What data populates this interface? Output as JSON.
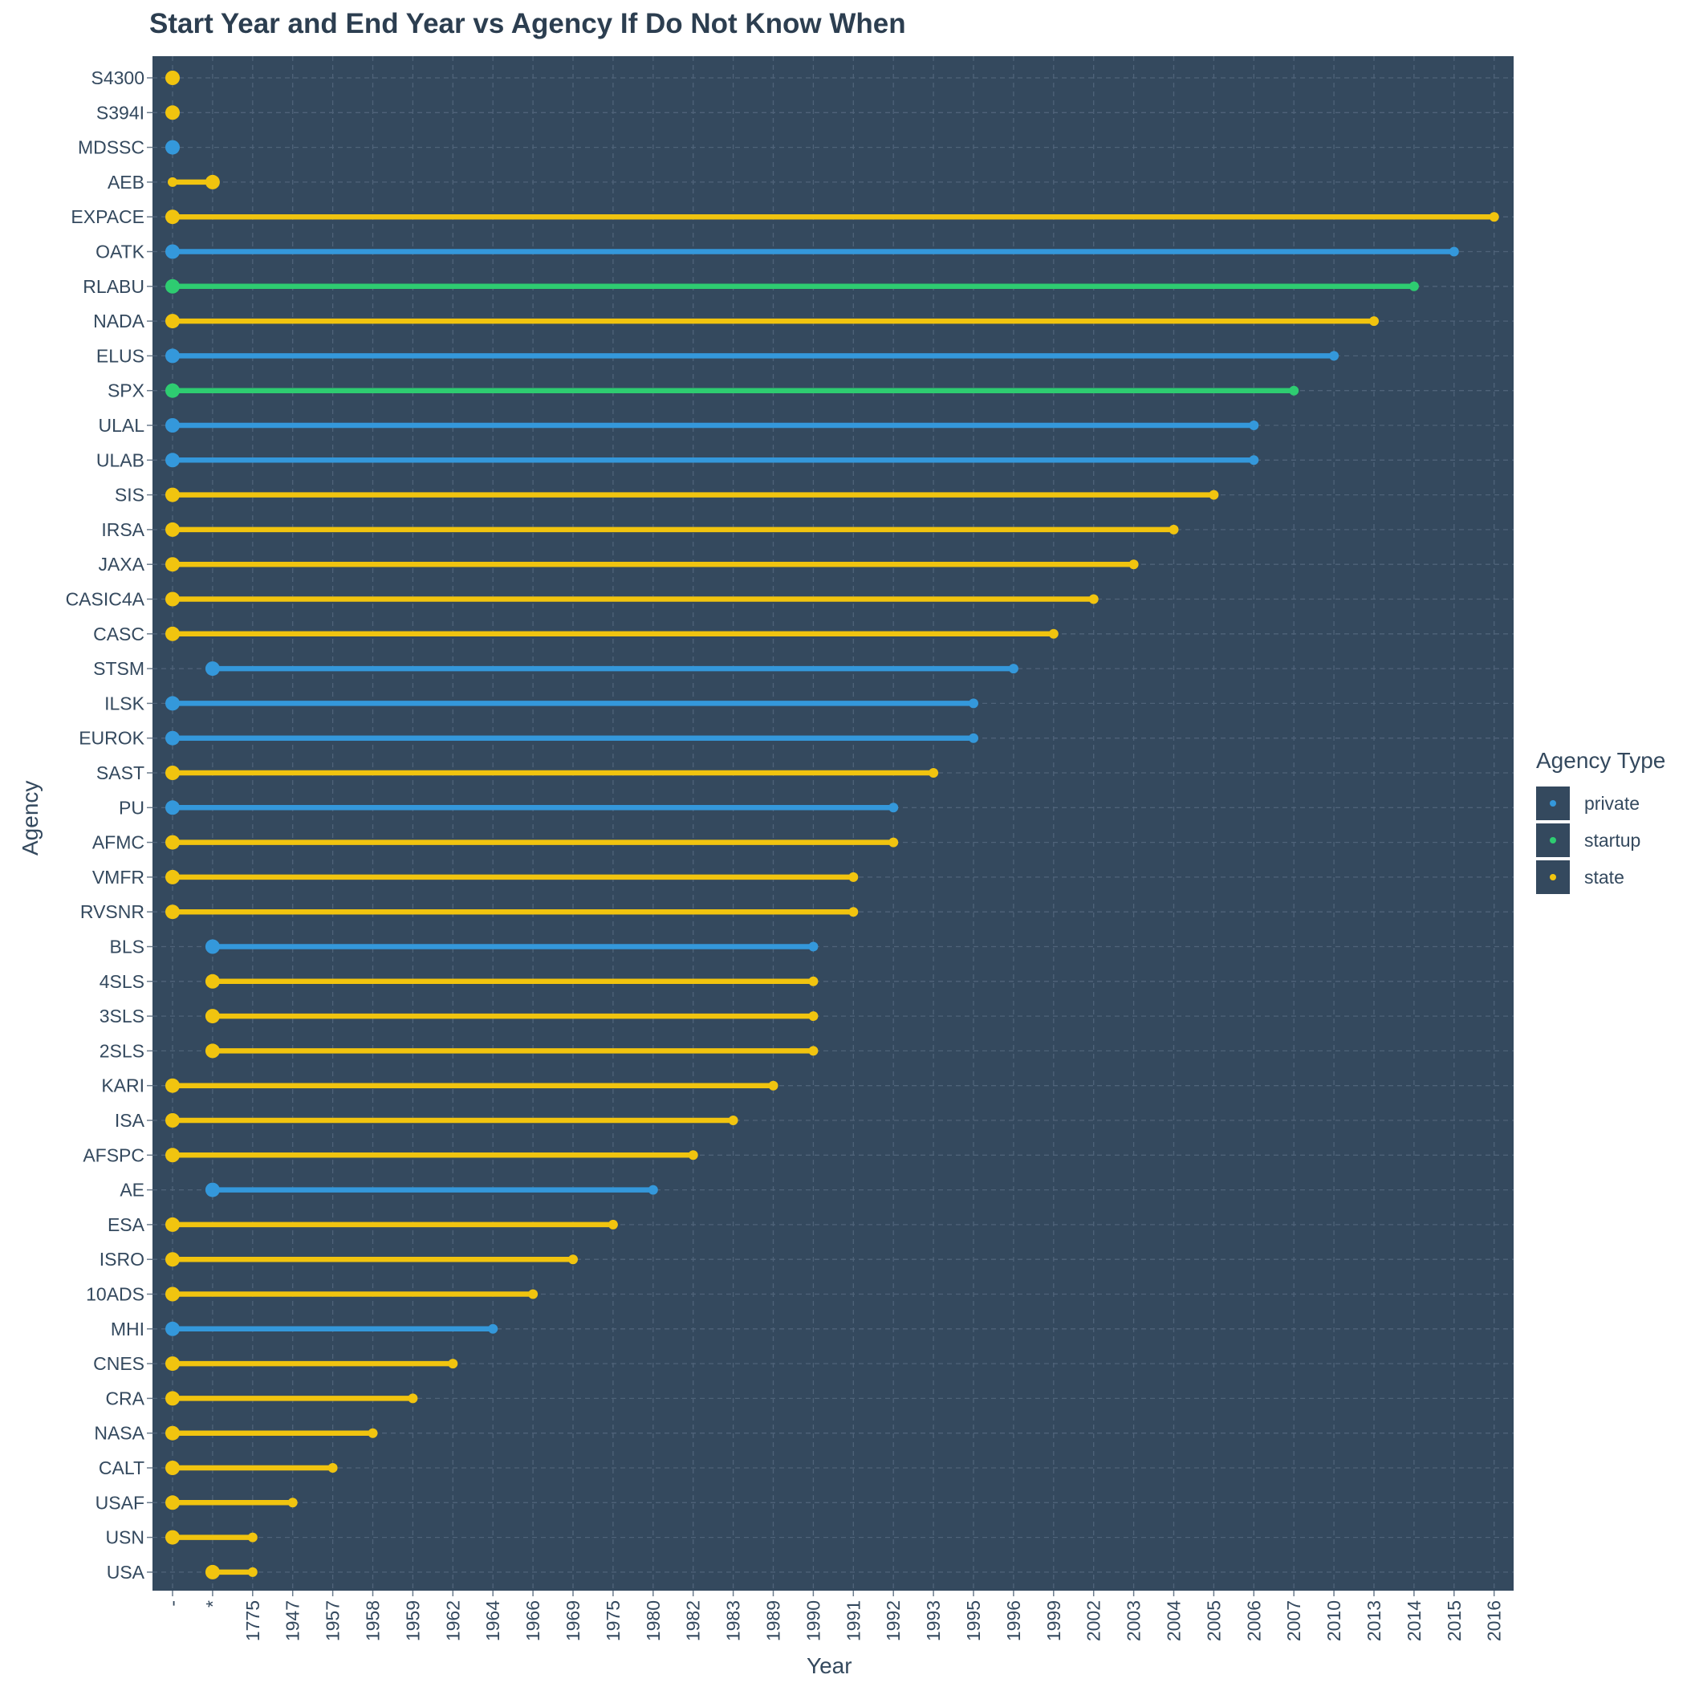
{
  "chart_data": {
    "type": "dumbbell",
    "title": "Start Year and End Year vs Agency If Do Not Know When",
    "xlabel": "Year",
    "ylabel": "Agency",
    "x_categories": [
      "-",
      "*",
      "1775",
      "1947",
      "1957",
      "1958",
      "1959",
      "1962",
      "1964",
      "1966",
      "1969",
      "1975",
      "1980",
      "1982",
      "1983",
      "1989",
      "1990",
      "1991",
      "1992",
      "1993",
      "1995",
      "1996",
      "1999",
      "2002",
      "2003",
      "2004",
      "2005",
      "2006",
      "2007",
      "2010",
      "2013",
      "2014",
      "2015",
      "2016"
    ],
    "legend_title": "Agency Type",
    "legend": [
      {
        "name": "private",
        "color": "#3498db"
      },
      {
        "name": "startup",
        "color": "#2ecc71"
      },
      {
        "name": "state",
        "color": "#f1c40f"
      }
    ],
    "background_color": "#34495e",
    "grid": true,
    "legend_position": "right",
    "rows": [
      {
        "agency": "S4300",
        "type": "state",
        "start": "-",
        "end": "-"
      },
      {
        "agency": "S394I",
        "type": "state",
        "start": "-",
        "end": "-"
      },
      {
        "agency": "MDSSC",
        "type": "private",
        "start": "-",
        "end": "-"
      },
      {
        "agency": "AEB",
        "type": "state",
        "start": "*",
        "end": "-"
      },
      {
        "agency": "EXPACE",
        "type": "state",
        "start": "-",
        "end": "2016"
      },
      {
        "agency": "OATK",
        "type": "private",
        "start": "-",
        "end": "2015"
      },
      {
        "agency": "RLABU",
        "type": "startup",
        "start": "-",
        "end": "2014"
      },
      {
        "agency": "NADA",
        "type": "state",
        "start": "-",
        "end": "2013"
      },
      {
        "agency": "ELUS",
        "type": "private",
        "start": "-",
        "end": "2010"
      },
      {
        "agency": "SPX",
        "type": "startup",
        "start": "-",
        "end": "2007"
      },
      {
        "agency": "ULAL",
        "type": "private",
        "start": "-",
        "end": "2006"
      },
      {
        "agency": "ULAB",
        "type": "private",
        "start": "-",
        "end": "2006"
      },
      {
        "agency": "SIS",
        "type": "state",
        "start": "-",
        "end": "2005"
      },
      {
        "agency": "IRSA",
        "type": "state",
        "start": "-",
        "end": "2004"
      },
      {
        "agency": "JAXA",
        "type": "state",
        "start": "-",
        "end": "2003"
      },
      {
        "agency": "CASIC4A",
        "type": "state",
        "start": "-",
        "end": "2002"
      },
      {
        "agency": "CASC",
        "type": "state",
        "start": "-",
        "end": "1999"
      },
      {
        "agency": "STSM",
        "type": "private",
        "start": "*",
        "end": "1996"
      },
      {
        "agency": "ILSK",
        "type": "private",
        "start": "-",
        "end": "1995"
      },
      {
        "agency": "EUROK",
        "type": "private",
        "start": "-",
        "end": "1995"
      },
      {
        "agency": "SAST",
        "type": "state",
        "start": "-",
        "end": "1993"
      },
      {
        "agency": "PU",
        "type": "private",
        "start": "-",
        "end": "1992"
      },
      {
        "agency": "AFMC",
        "type": "state",
        "start": "-",
        "end": "1992"
      },
      {
        "agency": "VMFR",
        "type": "state",
        "start": "-",
        "end": "1991"
      },
      {
        "agency": "RVSNR",
        "type": "state",
        "start": "-",
        "end": "1991"
      },
      {
        "agency": "BLS",
        "type": "private",
        "start": "*",
        "end": "1990"
      },
      {
        "agency": "4SLS",
        "type": "state",
        "start": "*",
        "end": "1990"
      },
      {
        "agency": "3SLS",
        "type": "state",
        "start": "*",
        "end": "1990"
      },
      {
        "agency": "2SLS",
        "type": "state",
        "start": "*",
        "end": "1990"
      },
      {
        "agency": "KARI",
        "type": "state",
        "start": "-",
        "end": "1989"
      },
      {
        "agency": "ISA",
        "type": "state",
        "start": "-",
        "end": "1983"
      },
      {
        "agency": "AFSPC",
        "type": "state",
        "start": "-",
        "end": "1982"
      },
      {
        "agency": "AE",
        "type": "private",
        "start": "*",
        "end": "1980"
      },
      {
        "agency": "ESA",
        "type": "state",
        "start": "-",
        "end": "1975"
      },
      {
        "agency": "ISRO",
        "type": "state",
        "start": "-",
        "end": "1969"
      },
      {
        "agency": "10ADS",
        "type": "state",
        "start": "-",
        "end": "1966"
      },
      {
        "agency": "MHI",
        "type": "private",
        "start": "-",
        "end": "1964"
      },
      {
        "agency": "CNES",
        "type": "state",
        "start": "-",
        "end": "1962"
      },
      {
        "agency": "CRA",
        "type": "state",
        "start": "-",
        "end": "1959"
      },
      {
        "agency": "NASA",
        "type": "state",
        "start": "-",
        "end": "1958"
      },
      {
        "agency": "CALT",
        "type": "state",
        "start": "-",
        "end": "1957"
      },
      {
        "agency": "USAF",
        "type": "state",
        "start": "-",
        "end": "1947"
      },
      {
        "agency": "USN",
        "type": "state",
        "start": "-",
        "end": "1775"
      },
      {
        "agency": "USA",
        "type": "state",
        "start": "*",
        "end": "1775"
      }
    ]
  }
}
